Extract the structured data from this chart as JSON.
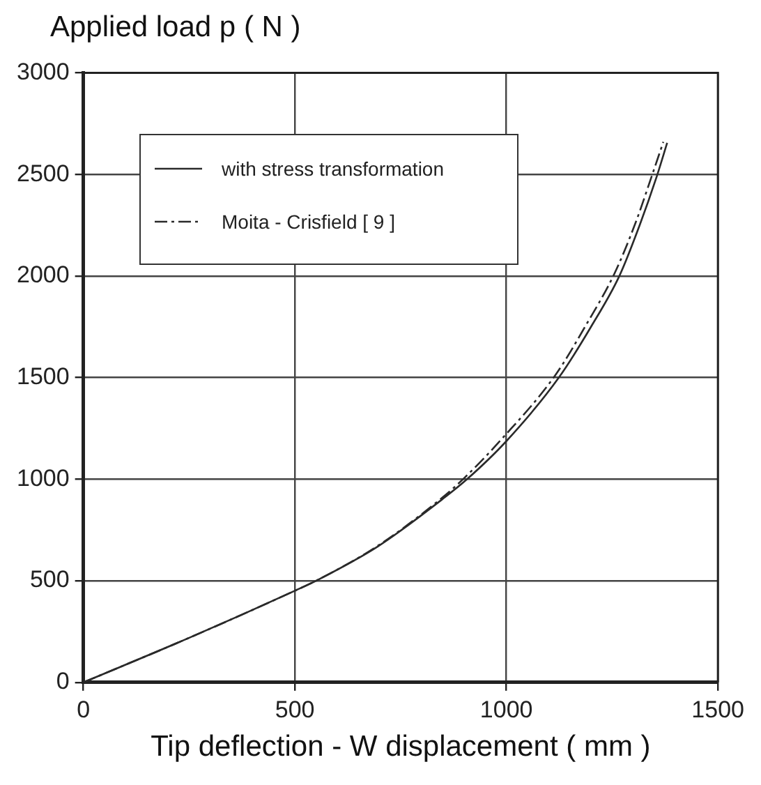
{
  "chart_data": {
    "type": "line",
    "ylabel": "Applied load p ( N )",
    "xlabel": "Tip deflection - W displacement ( mm )",
    "xlim": [
      0,
      1500
    ],
    "ylim": [
      0,
      3000
    ],
    "xticks": [
      0,
      500,
      1000,
      1500
    ],
    "yticks": [
      0,
      500,
      1000,
      1500,
      2000,
      2500,
      3000
    ],
    "grid": true,
    "legend": "top left",
    "marker": "none",
    "series": [
      {
        "name": "with stress transformation",
        "color": "#2a2a2a",
        "line_style": "solid",
        "x": [
          0,
          252,
          500,
          550,
          696,
          854,
          907,
          998,
          1124,
          1200,
          1267,
          1315,
          1357,
          1380
        ],
        "values": [
          0,
          221,
          451,
          500,
          669,
          910,
          1000,
          1183,
          1500,
          1750,
          2000,
          2250,
          2500,
          2655
        ]
      },
      {
        "name": "Moita - Crisfield [ 9 ]",
        "color": "#2a2a2a",
        "line_style": "dashed",
        "x": [
          0,
          252,
          500,
          550,
          696,
          850,
          900,
          990,
          1115,
          1190,
          1255,
          1305,
          1345,
          1371
        ],
        "values": [
          0,
          221,
          451,
          500,
          672,
          912,
          1005,
          1200,
          1510,
          1765,
          2010,
          2260,
          2500,
          2660
        ]
      }
    ]
  }
}
